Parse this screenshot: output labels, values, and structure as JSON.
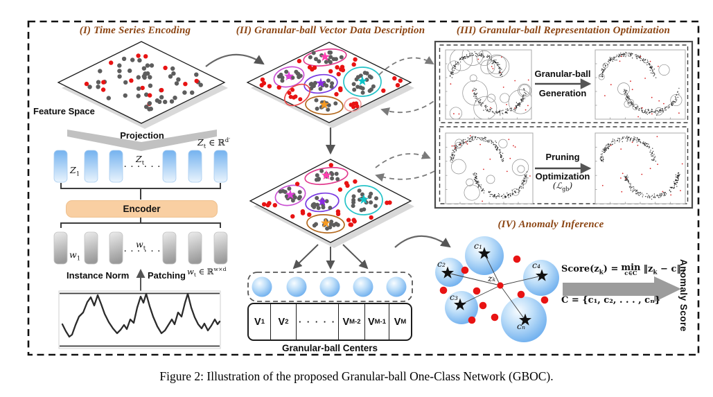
{
  "figure": {
    "caption": "Figure 2: Illustration of the proposed Granular-ball One-Class Network (GBOC)."
  },
  "headings": {
    "s1": "(I) Time Series Encoding",
    "s2": "(II) Granular-ball Vector Data Description",
    "s3": "(III) Granular-ball Representation Optimization",
    "s4": "(IV) Anomaly Inference"
  },
  "encoding": {
    "feature_space": "Feature Space",
    "projection": "Projection",
    "z_dim": {
      "v": "Z",
      "vs": "t",
      "rel": " ∈ ℝ",
      "exp": "d′"
    },
    "z_first": {
      "b": "Z",
      "s": "1"
    },
    "z_mid": {
      "b": "Z",
      "s": "t"
    },
    "row_dots": "· · · · · ·",
    "encoder": "Encoder",
    "w_first": {
      "b": "w",
      "s": "1"
    },
    "w_mid": {
      "b": "w",
      "s": "t"
    },
    "w_dim": {
      "v": "w",
      "vs": "t",
      "rel": " ∈ ℝ",
      "exp": "w×d"
    },
    "instance_norm": "Instance Norm",
    "patching": "Patching"
  },
  "gbvdd": {
    "cells": [
      {
        "b": "V",
        "s": "1"
      },
      {
        "b": "V",
        "s": "2"
      },
      {
        "b": "· · · · ·",
        "s": ""
      },
      {
        "b": "V",
        "s": "M-2"
      },
      {
        "b": "V",
        "s": "M-1"
      },
      {
        "b": "V",
        "s": "M"
      }
    ],
    "centers_label": "Granular-ball Centers"
  },
  "optimization": {
    "generation_top": "Granular-ball",
    "generation_bottom": "Generation",
    "pruning_top": "Pruning",
    "pruning_bottom": "Optimization",
    "loss": {
      "pre": "(ℒ",
      "sub": "gb",
      "post": ")"
    }
  },
  "inference": {
    "centers": [
      "c₁",
      "c₂",
      "c₃",
      "c₄",
      "cₙ"
    ],
    "query": "zₖ",
    "score": {
      "p1": "Score(z",
      "p1s": "k",
      "p2": ") = ",
      "min": "min",
      "min_sub": "c∈C",
      "p3": "‖z",
      "p3s": "k",
      "p4": " − c‖",
      "p4s": "2"
    },
    "set_def": "C = {c₁, c₂, . . . , cₙ}",
    "axis_label": "Anomaly Score"
  },
  "colors": {
    "heading": "#8B4513",
    "anomaly_red": "#E81313",
    "normal_gray": "#5d5d5d",
    "ball_blue": "#5ea5ec",
    "encoder_fill": "#F9CFA2"
  }
}
